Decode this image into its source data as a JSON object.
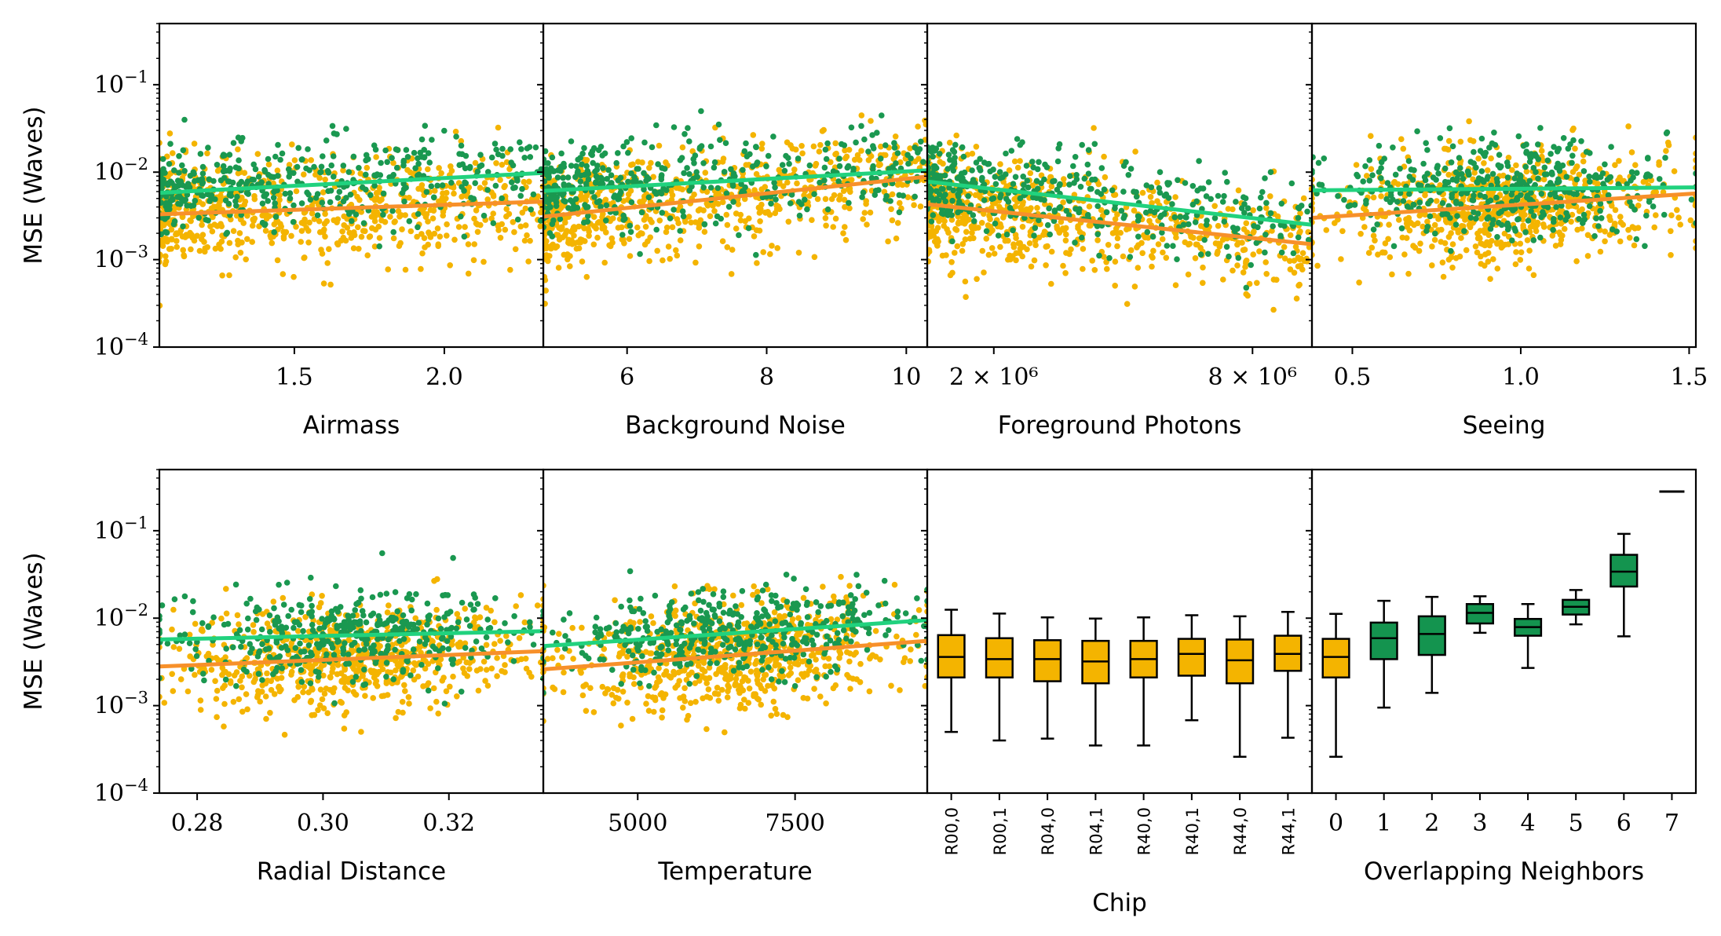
{
  "colors": {
    "scatter_orange": "#f4b400",
    "scatter_green": "#1a9850",
    "trend_green": "#21d27e",
    "trend_orange": "#f7902a",
    "box_orange": "#f4b400",
    "box_green": "#14944f",
    "axis": "#000000"
  },
  "chart_data": [
    {
      "type": "scatter",
      "id": "airmass",
      "xlabel": "Airmass",
      "ylabel": "MSE (Waves)",
      "xlim": [
        1.05,
        2.33
      ],
      "ylim": [
        0.0001,
        0.5
      ],
      "yscale": "log",
      "xticks": [
        {
          "value": 1.5,
          "label": "1.5"
        },
        {
          "value": 2.0,
          "label": "2.0"
        }
      ],
      "yticks": [
        {
          "value": 0.0001,
          "exp": "−4"
        },
        {
          "value": 0.001,
          "exp": "−3"
        },
        {
          "value": 0.01,
          "exp": "−2"
        },
        {
          "value": 0.1,
          "exp": "−1"
        }
      ],
      "trend": {
        "green": [
          [
            1.05,
            0.0058
          ],
          [
            2.33,
            0.0098
          ]
        ],
        "orange": [
          [
            1.05,
            0.0033
          ],
          [
            2.33,
            0.0046
          ]
        ]
      }
    },
    {
      "type": "scatter",
      "id": "background",
      "xlabel": "Background Noise",
      "xlim": [
        4.8,
        10.3
      ],
      "ylim": [
        0.0001,
        0.5
      ],
      "yscale": "log",
      "xticks": [
        {
          "value": 6,
          "label": "6"
        },
        {
          "value": 8,
          "label": "8"
        },
        {
          "value": 10,
          "label": "10"
        }
      ],
      "trend": {
        "green": [
          [
            4.8,
            0.0061
          ],
          [
            10.3,
            0.0105
          ]
        ],
        "orange": [
          [
            4.8,
            0.0031
          ],
          [
            10.3,
            0.0089
          ]
        ]
      }
    },
    {
      "type": "scatter",
      "id": "foreground",
      "xlabel": "Foreground Photons",
      "xscale": "log",
      "xlim": [
        1400000,
        11000000
      ],
      "ylim": [
        0.0001,
        0.5
      ],
      "yscale": "log",
      "xticks": [
        {
          "value": 2000000,
          "label": "2 × 10⁶"
        },
        {
          "value": 8000000,
          "label": "8 × 10⁶"
        }
      ],
      "trend": {
        "green": [
          [
            1400000,
            0.0078
          ],
          [
            11000000,
            0.0025
          ]
        ],
        "orange": [
          [
            1400000,
            0.0043
          ],
          [
            11000000,
            0.0015
          ]
        ]
      }
    },
    {
      "type": "scatter",
      "id": "seeing",
      "xlabel": "Seeing",
      "xlim": [
        0.38,
        1.52
      ],
      "ylim": [
        0.0001,
        0.5
      ],
      "yscale": "log",
      "xticks": [
        {
          "value": 0.5,
          "label": "0.5"
        },
        {
          "value": 1.0,
          "label": "1.0"
        },
        {
          "value": 1.5,
          "label": "1.5"
        }
      ],
      "trend": {
        "green": [
          [
            0.38,
            0.0062
          ],
          [
            1.52,
            0.0067
          ]
        ],
        "orange": [
          [
            0.38,
            0.003
          ],
          [
            1.52,
            0.0057
          ]
        ]
      }
    },
    {
      "type": "scatter",
      "id": "radial",
      "xlabel": "Radial Distance",
      "ylabel": "MSE (Waves)",
      "xlim": [
        0.274,
        0.335
      ],
      "ylim": [
        0.0001,
        0.5
      ],
      "yscale": "log",
      "xticks": [
        {
          "value": 0.28,
          "label": "0.28"
        },
        {
          "value": 0.3,
          "label": "0.30"
        },
        {
          "value": 0.32,
          "label": "0.32"
        }
      ],
      "yticks": [
        {
          "value": 0.0001,
          "exp": "−4"
        },
        {
          "value": 0.001,
          "exp": "−3"
        },
        {
          "value": 0.01,
          "exp": "−2"
        },
        {
          "value": 0.1,
          "exp": "−1"
        }
      ],
      "trend": {
        "green": [
          [
            0.274,
            0.0057
          ],
          [
            0.335,
            0.0071
          ]
        ],
        "orange": [
          [
            0.274,
            0.0028
          ],
          [
            0.335,
            0.0042
          ]
        ]
      }
    },
    {
      "type": "scatter",
      "id": "temperature",
      "xlabel": "Temperature",
      "xlim": [
        3500,
        9600
      ],
      "ylim": [
        0.0001,
        0.5
      ],
      "yscale": "log",
      "xticks": [
        {
          "value": 5000,
          "label": "5000"
        },
        {
          "value": 7500,
          "label": "7500"
        }
      ],
      "trend": {
        "green": [
          [
            3500,
            0.0048
          ],
          [
            9600,
            0.0095
          ]
        ],
        "orange": [
          [
            3500,
            0.0026
          ],
          [
            9600,
            0.0055
          ]
        ]
      }
    },
    {
      "type": "box",
      "id": "chip",
      "xlabel": "Chip",
      "ylim": [
        0.0001,
        0.5
      ],
      "yscale": "log",
      "categories": [
        "R00,0",
        "R00,1",
        "R04,0",
        "R04,1",
        "R40,0",
        "R40,1",
        "R44,0",
        "R44,1"
      ],
      "boxes": [
        {
          "whislo": 0.0005,
          "q1": 0.0021,
          "med": 0.0036,
          "q3": 0.0064,
          "whishi": 0.0125
        },
        {
          "whislo": 0.0004,
          "q1": 0.0021,
          "med": 0.0034,
          "q3": 0.0059,
          "whishi": 0.0113
        },
        {
          "whislo": 0.00042,
          "q1": 0.0019,
          "med": 0.0034,
          "q3": 0.0056,
          "whishi": 0.0102
        },
        {
          "whislo": 0.00035,
          "q1": 0.0018,
          "med": 0.0032,
          "q3": 0.0055,
          "whishi": 0.0099
        },
        {
          "whislo": 0.00035,
          "q1": 0.0021,
          "med": 0.0034,
          "q3": 0.0055,
          "whishi": 0.0102
        },
        {
          "whislo": 0.00068,
          "q1": 0.0022,
          "med": 0.0039,
          "q3": 0.0058,
          "whishi": 0.0108
        },
        {
          "whislo": 0.00026,
          "q1": 0.0018,
          "med": 0.0033,
          "q3": 0.0057,
          "whishi": 0.0105
        },
        {
          "whislo": 0.00043,
          "q1": 0.0025,
          "med": 0.0039,
          "q3": 0.0063,
          "whishi": 0.0118
        }
      ]
    },
    {
      "type": "box",
      "id": "neighbors",
      "xlabel": "Overlapping Neighbors",
      "ylim": [
        0.0001,
        0.5
      ],
      "yscale": "log",
      "categories": [
        "0",
        "1",
        "2",
        "3",
        "4",
        "5",
        "6",
        "7"
      ],
      "boxes": [
        {
          "whislo": 0.00026,
          "q1": 0.0021,
          "med": 0.0036,
          "q3": 0.0058,
          "whishi": 0.0112,
          "color": "orange"
        },
        {
          "whislo": 0.00095,
          "q1": 0.0034,
          "med": 0.0059,
          "q3": 0.0089,
          "whishi": 0.0158,
          "color": "green"
        },
        {
          "whislo": 0.0014,
          "q1": 0.0038,
          "med": 0.0066,
          "q3": 0.0105,
          "whishi": 0.0175,
          "color": "green"
        },
        {
          "whislo": 0.0068,
          "q1": 0.0087,
          "med": 0.0115,
          "q3": 0.0145,
          "whishi": 0.0178,
          "color": "green"
        },
        {
          "whislo": 0.0027,
          "q1": 0.0063,
          "med": 0.0079,
          "q3": 0.0098,
          "whishi": 0.0145,
          "color": "green"
        },
        {
          "whislo": 0.0085,
          "q1": 0.011,
          "med": 0.0135,
          "q3": 0.0162,
          "whishi": 0.021,
          "color": "green"
        },
        {
          "whislo": 0.0062,
          "q1": 0.023,
          "med": 0.034,
          "q3": 0.053,
          "whishi": 0.092,
          "color": "green"
        },
        {
          "single": 0.28,
          "color": "black"
        }
      ]
    }
  ]
}
